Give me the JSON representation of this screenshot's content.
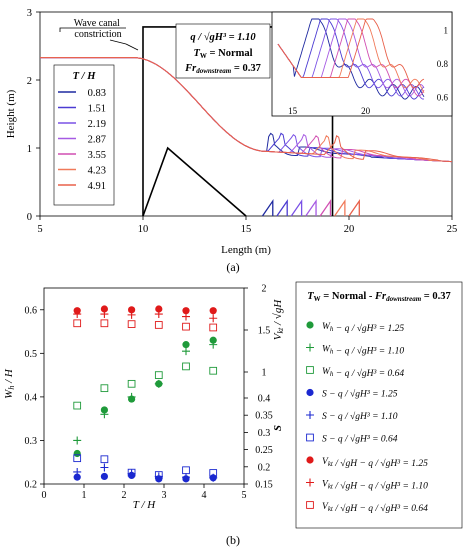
{
  "figure": {
    "label_a": "(a)",
    "label_b": "(b)"
  },
  "chart_data": [
    {
      "type": "line",
      "xlabel": "Length (m)",
      "ylabel": "Height (m)",
      "xlim": [
        5,
        25
      ],
      "ylim": [
        0,
        3
      ],
      "xticks": [
        "5",
        "10",
        "15",
        "20",
        "25"
      ],
      "yticks": [
        "0",
        "1",
        "2",
        "3"
      ],
      "grid": false,
      "annotation": "Wave canal constriction",
      "legend_title": "T / H",
      "legend_entries": [
        "0.83",
        "1.51",
        "2.19",
        "2.87",
        "3.55",
        "4.23",
        "4.91"
      ],
      "series_colors": [
        "#1f2aa0",
        "#4b3bd2",
        "#7a52e6",
        "#a65ae3",
        "#d14fb2",
        "#f07a5a",
        "#e8604a"
      ],
      "info_lines": [
        "q / √gH³ = 1.10",
        "T_W = Normal",
        "Fr_downstream = 0.37"
      ],
      "upstream_level": 2.33,
      "constriction_start": 10,
      "peak_x": 11.2,
      "peak_y": 1.0,
      "ramp_end": 15,
      "axis_line_x": 19.2,
      "inset": {
        "xlim": [
          14,
          24
        ],
        "ylim": [
          0.55,
          1.1
        ],
        "xticks": [
          "15",
          "20"
        ],
        "yticks": [
          "0.6",
          "0.8",
          "1"
        ]
      }
    },
    {
      "type": "scatter",
      "title": "T_W = Normal - Fr_downstream = 0.37",
      "xlabel": "T / H",
      "ylabel_left": "W_h / H",
      "ylabel_right_upper": "V_kt / √gH",
      "ylabel_right_lower": "S",
      "xlim": [
        0,
        5
      ],
      "ylim_left": [
        0.2,
        0.65
      ],
      "ylim_right_upper": [
        1,
        2
      ],
      "ylim_right_lower": [
        0.15,
        0.4
      ],
      "xticks": [
        "0",
        "1",
        "2",
        "3",
        "4",
        "5"
      ],
      "yticks_left": [
        "0.2",
        "0.3",
        "0.4",
        "0.5",
        "0.6"
      ],
      "yticks_right_upper": [
        "1",
        "1.5",
        "2"
      ],
      "yticks_right_lower": [
        "0.15",
        "0.2",
        "0.25",
        "0.3",
        "0.35",
        "0.4"
      ],
      "x": [
        0.83,
        1.51,
        2.19,
        2.87,
        3.55,
        4.23
      ],
      "series": [
        {
          "name": "W_h − q/√gH³ = 1.25",
          "marker": "dot",
          "color": "#1f9a3a",
          "axis": "left",
          "values": [
            0.27,
            0.37,
            0.395,
            0.43,
            0.52,
            0.53
          ]
        },
        {
          "name": "W_h − q/√gH³ = 1.10",
          "marker": "plus",
          "color": "#1f9a3a",
          "axis": "left",
          "values": [
            0.3,
            0.36,
            0.4,
            0.43,
            0.505,
            0.52
          ]
        },
        {
          "name": "W_h − q/√gH³ = 0.64",
          "marker": "square",
          "color": "#1f9a3a",
          "axis": "left",
          "values": [
            0.38,
            0.42,
            0.43,
            0.45,
            0.47,
            0.46
          ]
        },
        {
          "name": "S − q/√gH³ = 1.25",
          "marker": "dot",
          "color": "#1b28d0",
          "axis": "right_lower",
          "values": [
            0.17,
            0.172,
            0.175,
            0.165,
            0.165,
            0.168
          ]
        },
        {
          "name": "S − q/√gH³ = 1.10",
          "marker": "plus",
          "color": "#1b28d0",
          "axis": "right_lower",
          "values": [
            0.185,
            0.198,
            0.18,
            0.172,
            0.17,
            0.168
          ]
        },
        {
          "name": "S − q/√gH³ = 0.64",
          "marker": "square",
          "color": "#1b28d0",
          "axis": "right_lower",
          "values": [
            0.225,
            0.222,
            0.183,
            0.176,
            0.19,
            0.182
          ]
        },
        {
          "name": "V_kt/√gH − q/√gH³ = 1.25",
          "marker": "dot",
          "color": "#e01a1a",
          "axis": "right_upper",
          "values": [
            1.73,
            1.75,
            1.74,
            1.75,
            1.73,
            1.73
          ]
        },
        {
          "name": "V_kt/√gH − q/√gH³ = 1.10",
          "marker": "plus",
          "color": "#e01a1a",
          "axis": "right_upper",
          "values": [
            1.69,
            1.69,
            1.68,
            1.69,
            1.66,
            1.64
          ]
        },
        {
          "name": "V_kt/√gH − q/√gH³ = 0.64",
          "marker": "square",
          "color": "#e01a1a",
          "axis": "right_upper",
          "values": [
            1.58,
            1.58,
            1.57,
            1.56,
            1.54,
            1.53
          ]
        }
      ]
    }
  ]
}
